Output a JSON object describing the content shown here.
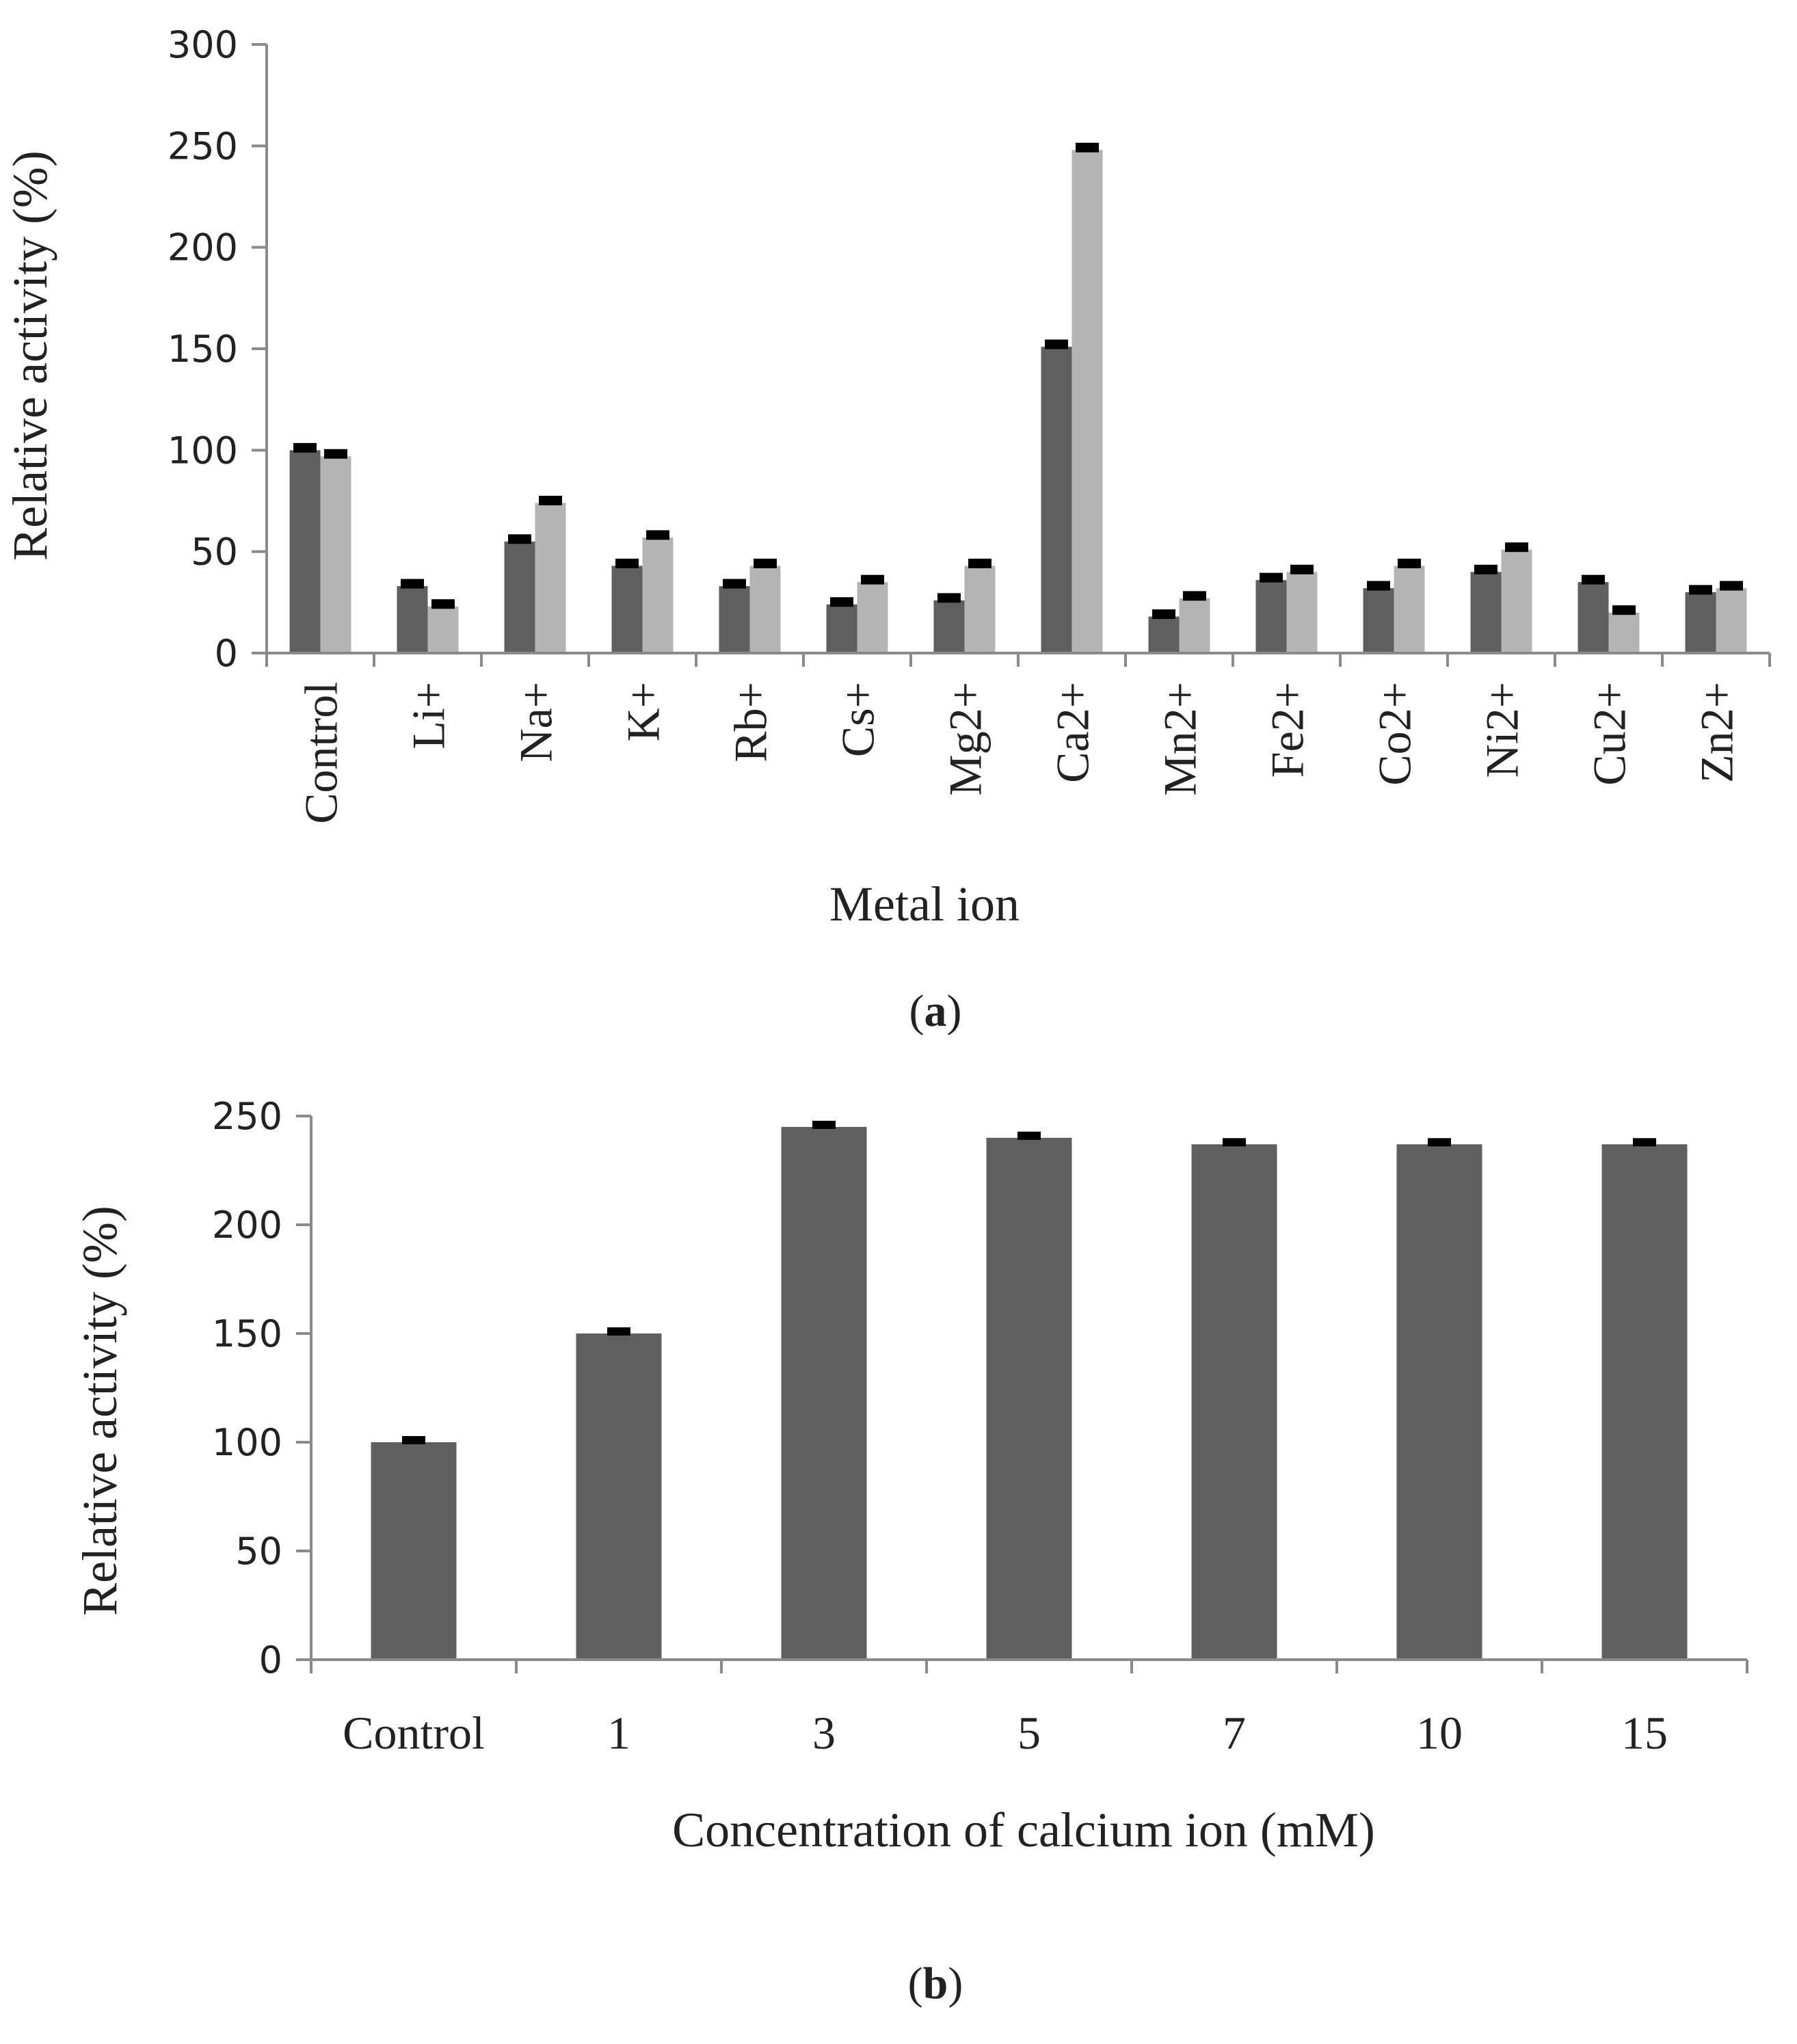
{
  "colors": {
    "series_dark": "#5f5f5f",
    "series_light": "#b4b4b4",
    "axis": "#8a8a8a",
    "error_cap": "#000000",
    "text": "#222222"
  },
  "panels": {
    "a": {
      "label_open": "(",
      "label_letter": "a",
      "label_close": ")"
    },
    "b": {
      "label_open": "(",
      "label_letter": "b",
      "label_close": ")"
    }
  },
  "chart_data": [
    {
      "type": "bar",
      "xlabel": "Metal ion",
      "ylabel": "Relative activity (%)",
      "ylim": [
        0,
        300
      ],
      "yticks": [
        0,
        50,
        100,
        150,
        200,
        250,
        300
      ],
      "grid": false,
      "legend": "none",
      "categories": [
        "Control",
        "Li+",
        "Na+",
        "K+",
        "Rb+",
        "Cs+",
        "Mg2+",
        "Ca2+",
        "Mn2+",
        "Fe2+",
        "Co2+",
        "Ni2+",
        "Cu2+",
        "Zn2+"
      ],
      "series": [
        {
          "color": "#5f5f5f",
          "values": [
            100,
            33,
            55,
            43,
            33,
            24,
            26,
            151,
            18,
            36,
            32,
            40,
            35,
            30
          ]
        },
        {
          "color": "#b4b4b4",
          "values": [
            97,
            23,
            74,
            57,
            43,
            35,
            43,
            248,
            27,
            40,
            43,
            51,
            20,
            32
          ]
        }
      ]
    },
    {
      "type": "bar",
      "xlabel": "Concentration of calcium ion (mM)",
      "ylabel": "Relative activity (%)",
      "ylim": [
        0,
        250
      ],
      "yticks": [
        0,
        50,
        100,
        150,
        200,
        250
      ],
      "grid": false,
      "legend": "none",
      "categories": [
        "Control",
        "1",
        "3",
        "5",
        "7",
        "10",
        "15"
      ],
      "series": [
        {
          "color": "#5f5f5f",
          "values": [
            100,
            150,
            245,
            240,
            237,
            237,
            237
          ]
        }
      ]
    }
  ]
}
